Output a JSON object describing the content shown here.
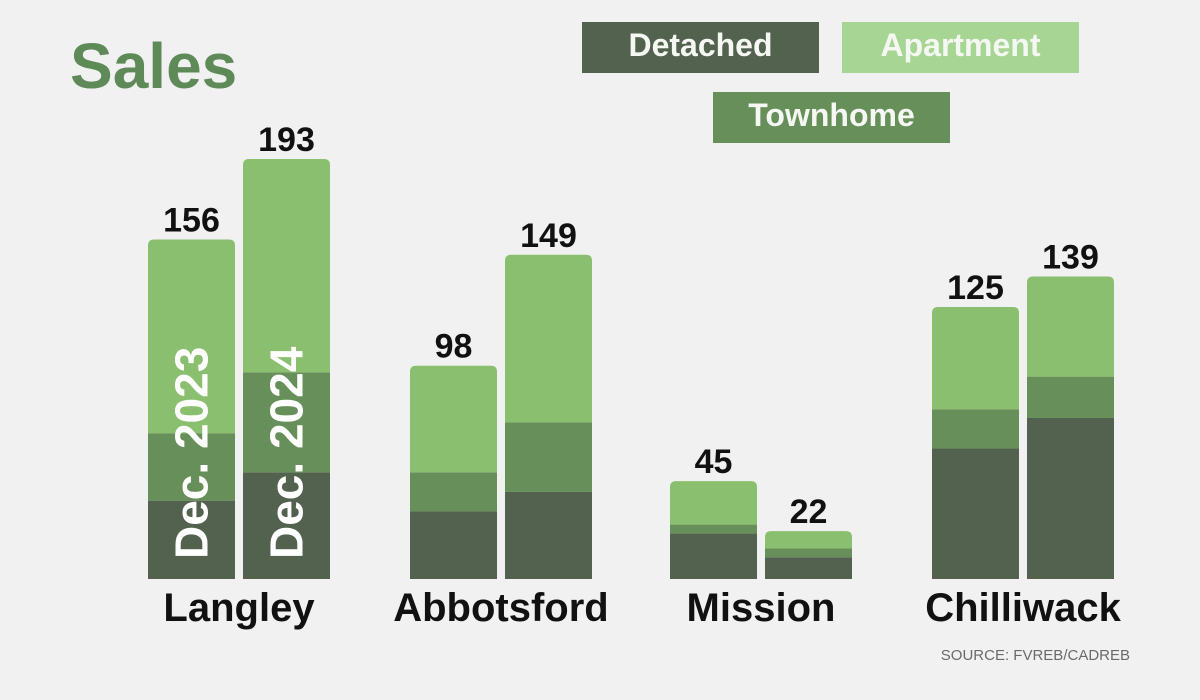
{
  "title": "Sales",
  "source": "SOURCE: FVREB/CADREB",
  "colors": {
    "detached": "#53624f",
    "townhome": "#678f59",
    "apartment": "#89bf6e",
    "apartment_legend": "#a7d594",
    "background": "#f1f1f1"
  },
  "legend": [
    {
      "key": "detached",
      "label": "Detached"
    },
    {
      "key": "apartment",
      "label": "Apartment"
    },
    {
      "key": "townhome",
      "label": "Townhome"
    }
  ],
  "chart_data": {
    "type": "bar",
    "stacked": true,
    "title": "Sales",
    "categories": [
      "Langley",
      "Abbotsford",
      "Mission",
      "Chilliwack"
    ],
    "periods": [
      "Dec. 2023",
      "Dec. 2024"
    ],
    "series": [
      {
        "name": "Detached",
        "values": [
          [
            36,
            49
          ],
          [
            31,
            40
          ],
          [
            21,
            10
          ],
          [
            60,
            74
          ]
        ]
      },
      {
        "name": "Townhome",
        "values": [
          [
            31,
            46
          ],
          [
            18,
            32
          ],
          [
            4,
            4
          ],
          [
            18,
            19
          ]
        ]
      },
      {
        "name": "Apartment",
        "values": [
          [
            89,
            98
          ],
          [
            49,
            77
          ],
          [
            20,
            8
          ],
          [
            47,
            46
          ]
        ]
      }
    ],
    "totals": [
      [
        156,
        193
      ],
      [
        98,
        149
      ],
      [
        45,
        22
      ],
      [
        125,
        139
      ]
    ],
    "ylim": [
      0,
      200
    ],
    "legend_position": "top-right"
  }
}
